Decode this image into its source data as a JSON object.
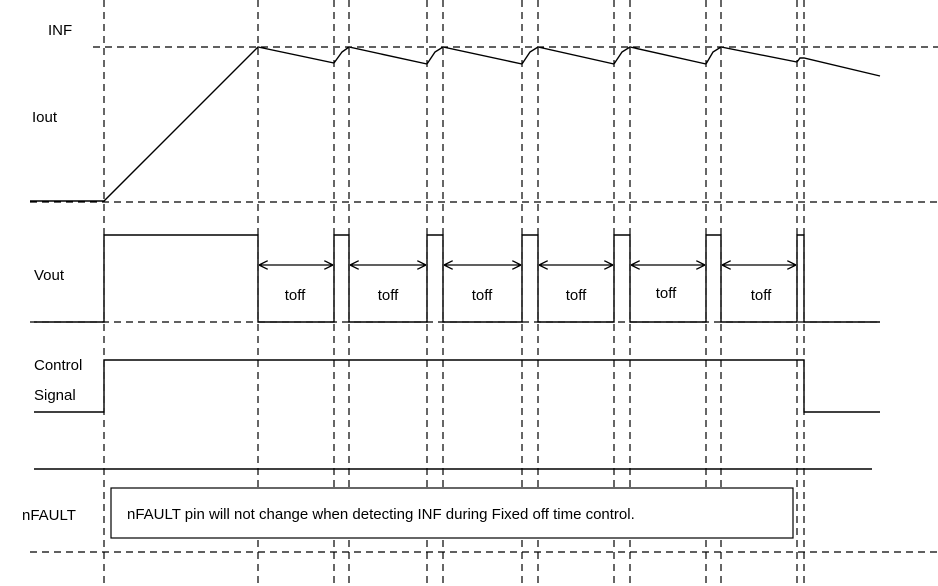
{
  "labels": {
    "inf": "INF",
    "iout": "Iout",
    "vout": "Vout",
    "control_line1": "Control",
    "control_line2": "Signal",
    "nfault": "nFAULT"
  },
  "toff_label": "toff",
  "toff_count": 6,
  "note": "nFAULT pin will not change when detecting INF during Fixed off time control.",
  "colors": {
    "line": "#000000",
    "background": "#ffffff"
  }
}
